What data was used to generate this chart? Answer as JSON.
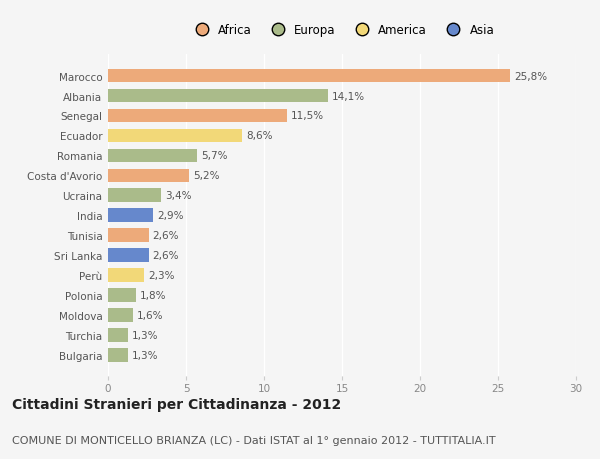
{
  "countries": [
    "Marocco",
    "Albania",
    "Senegal",
    "Ecuador",
    "Romania",
    "Costa d'Avorio",
    "Ucraina",
    "India",
    "Tunisia",
    "Sri Lanka",
    "Perù",
    "Polonia",
    "Moldova",
    "Turchia",
    "Bulgaria"
  ],
  "values": [
    25.8,
    14.1,
    11.5,
    8.6,
    5.7,
    5.2,
    3.4,
    2.9,
    2.6,
    2.6,
    2.3,
    1.8,
    1.6,
    1.3,
    1.3
  ],
  "labels": [
    "25,8%",
    "14,1%",
    "11,5%",
    "8,6%",
    "5,7%",
    "5,2%",
    "3,4%",
    "2,9%",
    "2,6%",
    "2,6%",
    "2,3%",
    "1,8%",
    "1,6%",
    "1,3%",
    "1,3%"
  ],
  "categories": [
    "Africa",
    "Europa",
    "America",
    "Asia"
  ],
  "continents": [
    "Africa",
    "Europa",
    "Africa",
    "America",
    "Europa",
    "Africa",
    "Europa",
    "Asia",
    "Africa",
    "Asia",
    "America",
    "Europa",
    "Europa",
    "Europa",
    "Europa"
  ],
  "colors": {
    "Africa": "#EDAA7A",
    "Europa": "#AABB8A",
    "America": "#F2D878",
    "Asia": "#6688CC"
  },
  "background_color": "#f5f5f5",
  "title": "Cittadini Stranieri per Cittadinanza - 2012",
  "subtitle": "COMUNE DI MONTICELLO BRIANZA (LC) - Dati ISTAT al 1° gennaio 2012 - TUTTITALIA.IT",
  "xlim": [
    0,
    30
  ],
  "xticks": [
    0,
    5,
    10,
    15,
    20,
    25,
    30
  ],
  "title_fontsize": 10,
  "subtitle_fontsize": 8,
  "label_fontsize": 7.5,
  "tick_fontsize": 7.5,
  "legend_fontsize": 8.5
}
